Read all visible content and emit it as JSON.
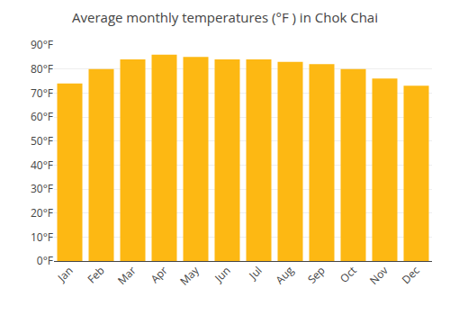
{
  "chart_data": {
    "type": "bar",
    "title": "Average monthly temperatures (°F ) in Chok Chai",
    "categories": [
      "Jan",
      "Feb",
      "Mar",
      "Apr",
      "May",
      "Jun",
      "Jul",
      "Aug",
      "Sep",
      "Oct",
      "Nov",
      "Dec"
    ],
    "values": [
      74,
      80,
      84,
      86,
      85,
      84,
      84,
      83,
      82,
      80,
      76,
      73
    ],
    "color": "#FDB813",
    "ylim": [
      0,
      90
    ],
    "yticks": [
      {
        "value": 0,
        "label": "0°F"
      },
      {
        "value": 10,
        "label": "10°F"
      },
      {
        "value": 20,
        "label": "20°F"
      },
      {
        "value": 30,
        "label": "30°F"
      },
      {
        "value": 40,
        "label": "40°F"
      },
      {
        "value": 50,
        "label": "50°F"
      },
      {
        "value": 60,
        "label": "60°F"
      },
      {
        "value": 70,
        "label": "70°F"
      },
      {
        "value": 80,
        "label": "80°F"
      },
      {
        "value": 90,
        "label": "90°F"
      }
    ],
    "grid": true
  }
}
